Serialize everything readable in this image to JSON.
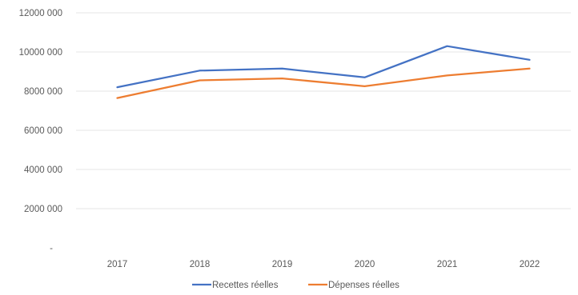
{
  "chart_data": {
    "type": "line",
    "title": "",
    "xlabel": "",
    "ylabel": "",
    "categories": [
      "2017",
      "2018",
      "2019",
      "2020",
      "2021",
      "2022"
    ],
    "ylim": [
      0,
      12000000
    ],
    "y_ticks": [
      {
        "value": 0,
        "label": "-"
      },
      {
        "value": 2000000,
        "label": "2000 000"
      },
      {
        "value": 4000000,
        "label": "4000 000"
      },
      {
        "value": 6000000,
        "label": "6000 000"
      },
      {
        "value": 8000000,
        "label": "8000 000"
      },
      {
        "value": 10000000,
        "label": "10000 000"
      },
      {
        "value": 12000000,
        "label": "12000 000"
      }
    ],
    "grid": true,
    "legend_position": "bottom",
    "series": [
      {
        "name": "Recettes réelles",
        "color": "#4472c4",
        "values": [
          8200000,
          9050000,
          9150000,
          8700000,
          10300000,
          9600000
        ]
      },
      {
        "name": "Dépenses réelles",
        "color": "#ed7d31",
        "values": [
          7650000,
          8550000,
          8650000,
          8250000,
          8800000,
          9150000
        ]
      }
    ]
  }
}
